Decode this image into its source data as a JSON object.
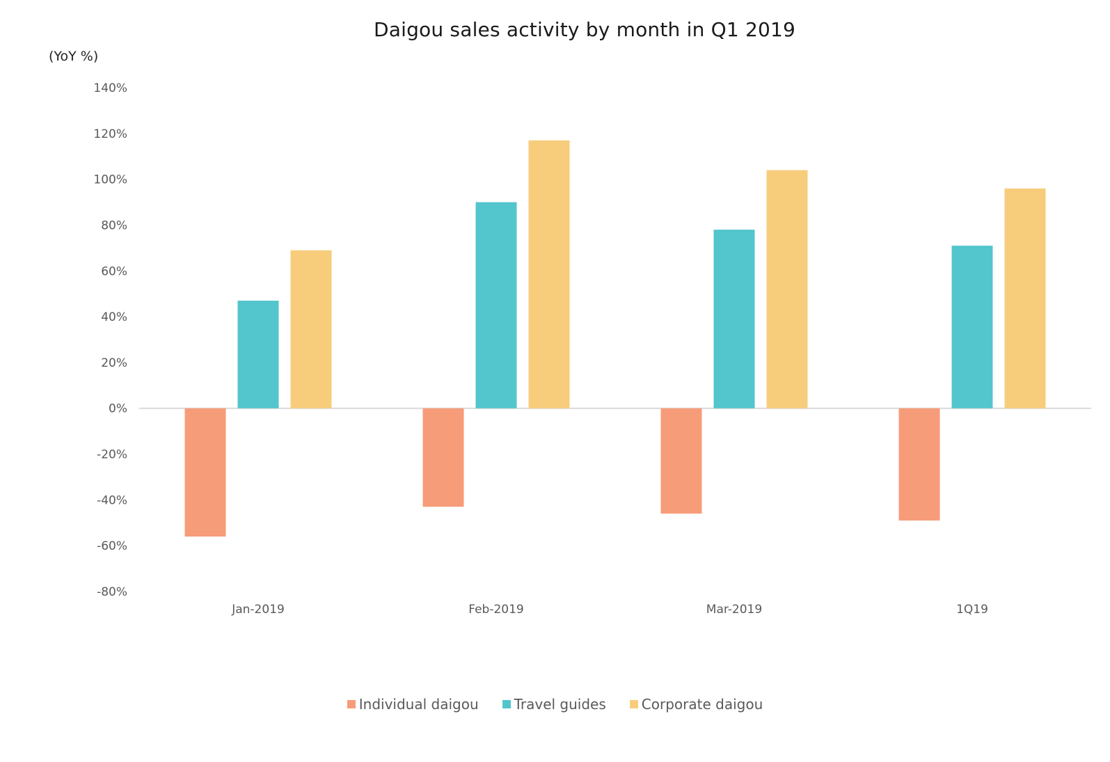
{
  "chart_data": {
    "type": "bar",
    "title": "Daigou sales activity by month in Q1 2019",
    "y_unit_label": "(YoY %)",
    "categories": [
      "Jan-2019",
      "Feb-2019",
      "Mar-2019",
      "1Q19"
    ],
    "series": [
      {
        "name": "Individual daigou",
        "color": "#F79C79",
        "values": [
          -56,
          -43,
          -46,
          -49
        ]
      },
      {
        "name": "Travel guides",
        "color": "#53C5CC",
        "values": [
          47,
          90,
          78,
          71
        ]
      },
      {
        "name": "Corporate daigou",
        "color": "#F7CD7C",
        "values": [
          69,
          117,
          104,
          96
        ]
      }
    ],
    "ylim": [
      -80,
      140
    ],
    "yticks": [
      140,
      120,
      100,
      80,
      60,
      40,
      20,
      0,
      -20,
      -40,
      -60,
      -80
    ],
    "ytick_labels": [
      "140%",
      "120%",
      "100%",
      "80%",
      "60%",
      "40%",
      "20%",
      "0%",
      "-20%",
      "-40%",
      "-60%",
      "-80%"
    ],
    "grid": false,
    "legend_position": "bottom"
  }
}
